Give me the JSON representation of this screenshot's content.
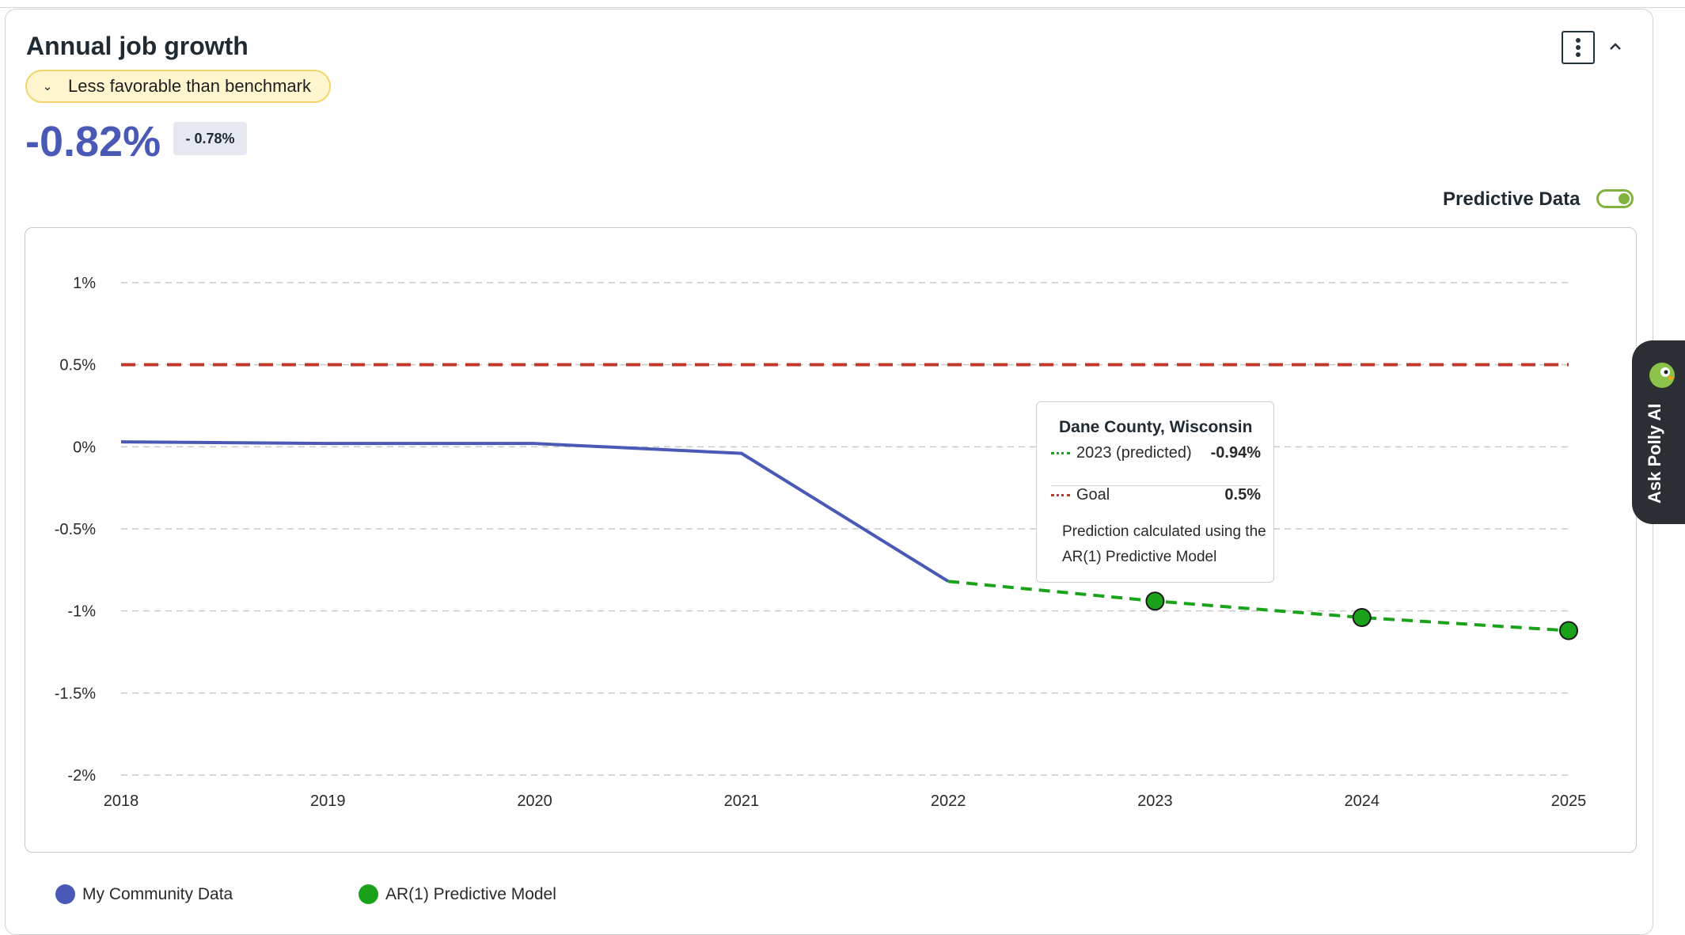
{
  "header": {
    "title": "Annual job growth",
    "badge_label": "Less favorable than benchmark",
    "value": "-0.82%",
    "delta": "- 0.78%"
  },
  "controls": {
    "predictive_label": "Predictive Data",
    "predictive_enabled": true
  },
  "colors": {
    "community": "#4a59b5",
    "predicted": "#1aa31a",
    "goal": "#c0392b",
    "badge_bg": "#fff6d0",
    "badge_border": "#f1d56a"
  },
  "tooltip": {
    "title": "Dane County, Wisconsin",
    "rows": [
      {
        "label": "2023 (predicted)",
        "value": "-0.94%",
        "color": "#1aa31a"
      },
      {
        "label": "Goal",
        "value": "0.5%",
        "color": "#c0392b"
      }
    ],
    "note": "Prediction calculated using the AR(1) Predictive Model"
  },
  "legend": [
    {
      "label": "My Community Data",
      "color": "#4a59b5"
    },
    {
      "label": "AR(1) Predictive Model",
      "color": "#1aa31a"
    }
  ],
  "side_panel": {
    "label": "Ask Polly AI"
  },
  "chart_data": {
    "type": "line",
    "x": [
      "2018",
      "2019",
      "2020",
      "2021",
      "2022",
      "2023",
      "2024",
      "2025"
    ],
    "xlim": [
      "2018",
      "2025"
    ],
    "ylim": [
      -2,
      1
    ],
    "yticks": [
      1,
      0.5,
      0,
      -0.5,
      -1,
      -1.5,
      -2
    ],
    "ytick_labels": [
      "1%",
      "0.5%",
      "0%",
      "-0.5%",
      "-1%",
      "-1.5%",
      "-2%"
    ],
    "grid": true,
    "series": [
      {
        "name": "My Community Data",
        "x": [
          "2018",
          "2019",
          "2020",
          "2021",
          "2022"
        ],
        "values": [
          0.03,
          0.02,
          0.02,
          -0.04,
          -0.82
        ]
      },
      {
        "name": "AR(1) Predictive Model",
        "x": [
          "2022",
          "2023",
          "2024",
          "2025"
        ],
        "values": [
          -0.82,
          -0.94,
          -1.04,
          -1.12
        ],
        "markers": [
          "2023",
          "2024",
          "2025"
        ]
      },
      {
        "name": "Goal",
        "x": [
          "2018",
          "2025"
        ],
        "values": [
          0.5,
          0.5
        ]
      }
    ]
  }
}
